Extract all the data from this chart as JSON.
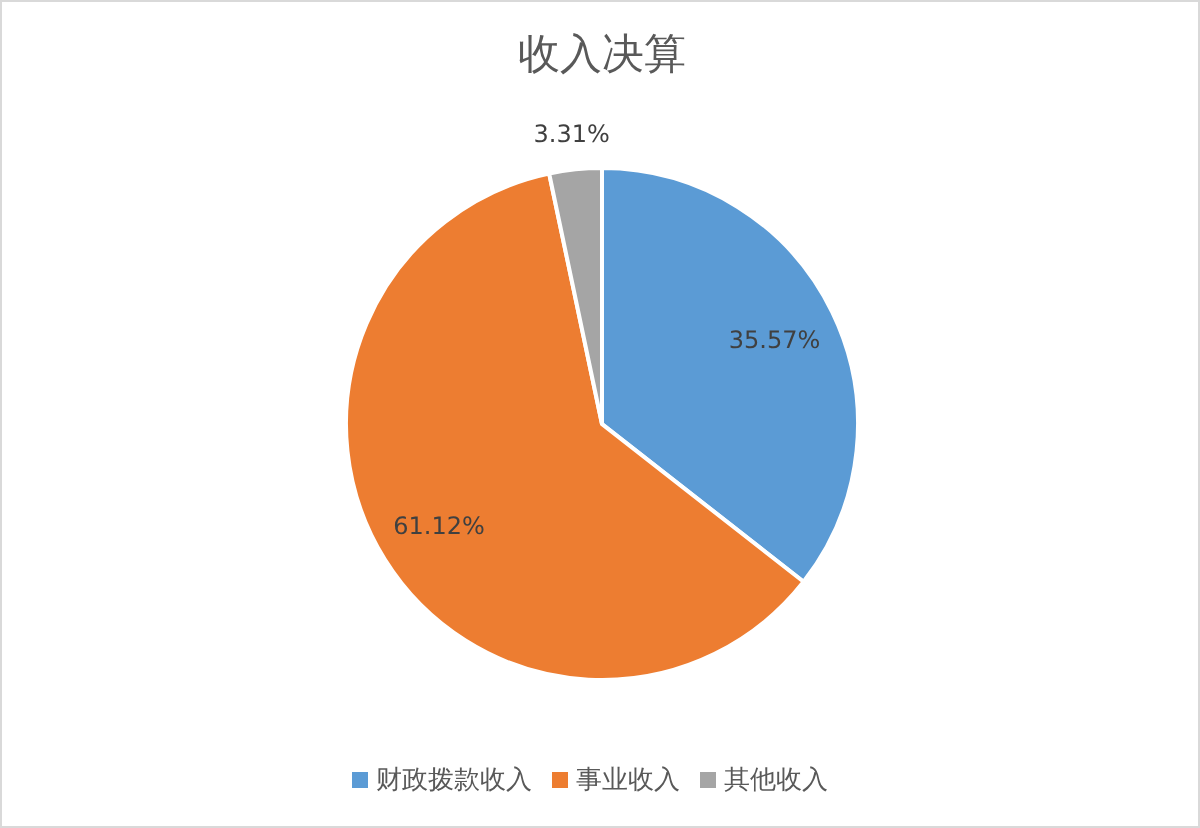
{
  "chart_data": {
    "type": "pie",
    "title": "收入决算",
    "categories": [
      "财政拨款收入",
      "事业收入",
      "其他收入"
    ],
    "values": [
      35.57,
      61.12,
      3.31
    ],
    "colors": [
      "#5b9bd5",
      "#ed7d31",
      "#a5a5a5"
    ],
    "value_labels": [
      "35.57%",
      "61.12%",
      "3.31%"
    ],
    "legend": "bottom"
  }
}
